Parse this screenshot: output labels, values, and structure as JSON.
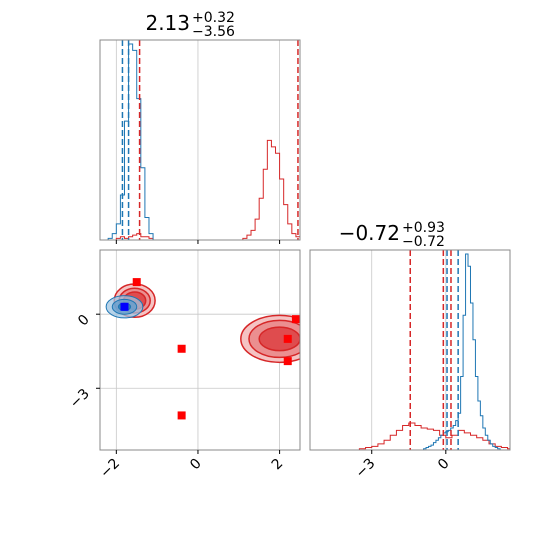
{
  "chart_data": {
    "type": "corner",
    "parameters": [
      {
        "title": {
          "value": "2.13",
          "upper": "+0.32",
          "lower": "−3.56"
        },
        "xlim": [
          -2.4,
          2.5
        ],
        "xticks": [
          {
            "value": -2,
            "label": "−2"
          },
          {
            "value": 0,
            "label": "0"
          },
          {
            "value": 2,
            "label": "2"
          }
        ],
        "quantile_lines_red": [
          -1.43,
          2.45
        ],
        "quantile_lines_blue": [
          -1.85,
          -1.7
        ],
        "histogram_red": {
          "bin_start": -2.4,
          "bin_width": 0.1,
          "counts": [
            0,
            0,
            0,
            0,
            1,
            2,
            1,
            2,
            3,
            4,
            2,
            2,
            1,
            0,
            0,
            0,
            0,
            0,
            0,
            0,
            0,
            0,
            0,
            0,
            0,
            0,
            0,
            0,
            0,
            0,
            0,
            0,
            0,
            0,
            0,
            1,
            3,
            6,
            13,
            26,
            44,
            62,
            58,
            54,
            38,
            22,
            10,
            4,
            2,
            0
          ]
        },
        "histogram_blue": {
          "bin_start": -2.4,
          "bin_width": 0.1,
          "counts": [
            0,
            0,
            1,
            4,
            10,
            28,
            74,
            122,
            118,
            88,
            45,
            14,
            4,
            0,
            0,
            0,
            0,
            0,
            0,
            0,
            0,
            0,
            0,
            0,
            0,
            0,
            0,
            0,
            0,
            0,
            0,
            0,
            0,
            0,
            0,
            0,
            0,
            0,
            0,
            0,
            0,
            0,
            0,
            0,
            0,
            0,
            0,
            0,
            0,
            0
          ]
        }
      },
      {
        "title": {
          "value": "−0.72",
          "upper": "+0.93",
          "lower": "−0.72"
        },
        "xlim": [
          -5.5,
          2.6
        ],
        "xticks": [
          {
            "value": -3,
            "label": "−3"
          },
          {
            "value": 0,
            "label": "0"
          }
        ],
        "quantile_lines_red": [
          -1.44,
          -0.1,
          0.21
        ],
        "quantile_lines_blue": [
          0.05,
          0.5
        ],
        "histogram_red": {
          "bin_start": -5.5,
          "bin_width": 0.25,
          "counts": [
            0,
            0,
            0,
            0,
            0,
            0,
            0,
            0,
            1,
            2,
            3,
            5,
            8,
            12,
            16,
            20,
            22,
            20,
            18,
            17,
            16,
            12,
            10,
            12,
            16,
            14,
            12,
            10,
            8,
            5,
            3,
            2,
            1,
            0
          ]
        },
        "histogram_blue": {
          "bin_start": -5.5,
          "bin_width": 0.1,
          "counts": [
            0,
            0,
            0,
            0,
            0,
            0,
            0,
            0,
            0,
            0,
            0,
            0,
            0,
            0,
            0,
            0,
            0,
            0,
            0,
            0,
            0,
            0,
            0,
            0,
            0,
            0,
            0,
            0,
            0,
            0,
            0,
            0,
            0,
            0,
            0,
            0,
            0,
            0,
            0,
            0,
            0,
            0,
            0,
            0,
            0,
            0,
            1,
            2,
            3,
            4,
            6,
            8,
            10,
            12,
            14,
            15,
            16,
            18,
            20,
            24,
            30,
            60,
            110,
            160,
            150,
            120,
            90,
            60,
            40,
            28,
            18,
            12,
            8,
            5,
            3,
            2,
            1,
            0,
            0,
            0,
            0
          ]
        }
      }
    ],
    "joint": {
      "xlim": [
        -2.4,
        2.5
      ],
      "ylim": [
        -5.5,
        2.6
      ],
      "yticks": [
        {
          "value": 0,
          "label": "0"
        },
        {
          "value": -3,
          "label": "−3"
        }
      ],
      "red_contours": [
        {
          "cx": -1.55,
          "cy": 0.55,
          "rx": [
            0.5,
            0.38,
            0.27
          ],
          "ry": [
            1.35,
            1.0,
            0.7
          ]
        },
        {
          "cx": 2.0,
          "cy": -1.0,
          "rx": [
            0.95,
            0.75,
            0.5
          ],
          "ry": [
            1.9,
            1.5,
            0.95
          ]
        }
      ],
      "blue_contours": [
        {
          "cx": -1.8,
          "cy": 0.3,
          "rx": [
            0.45,
            0.3,
            0.15
          ],
          "ry": [
            0.45,
            0.3,
            0.15
          ]
        }
      ],
      "red_markers": [
        {
          "x": -1.5,
          "y": 1.3
        },
        {
          "x": -0.4,
          "y": -1.4
        },
        {
          "x": -0.4,
          "y": -4.1
        },
        {
          "x": 2.4,
          "y": -0.2
        },
        {
          "x": 2.2,
          "y": -1.0
        },
        {
          "x": 2.2,
          "y": -1.9
        }
      ],
      "blue_markers": [
        {
          "x": -1.8,
          "y": 0.3
        }
      ]
    },
    "colors": {
      "red": "#d62728",
      "blue": "#1f77b4",
      "grid": "#c8c8c8",
      "axis": "#888888"
    }
  }
}
